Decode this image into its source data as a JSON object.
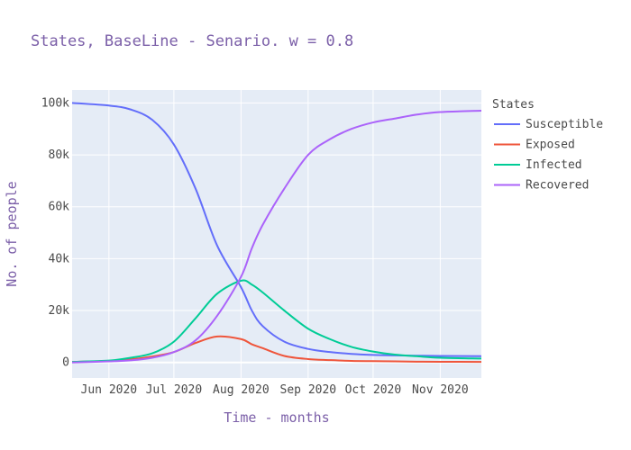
{
  "chart_data": {
    "type": "line",
    "title": "States, BaseLine - Senario. w = 0.8",
    "xlabel": "Time - months",
    "ylabel": "No. of people",
    "legend_title": "States",
    "legend_position": "right",
    "grid": true,
    "x_tick_labels": [
      "Jun 2020",
      "Jul 2020",
      "Aug 2020",
      "Sep 2020",
      "Oct 2020",
      "Nov 2020"
    ],
    "x_ticks": [
      "2020-06-01",
      "2020-07-01",
      "2020-08-01",
      "2020-09-01",
      "2020-10-01",
      "2020-11-01"
    ],
    "xlim": [
      "2020-05-15",
      "2020-11-20"
    ],
    "y_tick_labels": [
      "0",
      "20k",
      "40k",
      "60k",
      "80k",
      "100k"
    ],
    "y_ticks": [
      0,
      20000,
      40000,
      60000,
      80000,
      100000
    ],
    "ylim": [
      -6000,
      105000
    ],
    "x": [
      "2020-05-15",
      "2020-06-01",
      "2020-06-11",
      "2020-06-21",
      "2020-07-01",
      "2020-07-11",
      "2020-07-21",
      "2020-08-01",
      "2020-08-06",
      "2020-08-11",
      "2020-08-21",
      "2020-09-01",
      "2020-09-11",
      "2020-09-21",
      "2020-10-01",
      "2020-10-11",
      "2020-10-21",
      "2020-11-01",
      "2020-11-20"
    ],
    "series": [
      {
        "name": "Susceptible",
        "color": "#636efa",
        "values": [
          100000,
          99000,
          97500,
          93500,
          84000,
          67000,
          45000,
          29000,
          20000,
          14000,
          8000,
          5200,
          4000,
          3300,
          2900,
          2700,
          2600,
          2500,
          2400
        ]
      },
      {
        "name": "Exposed",
        "color": "#ef553b",
        "values": [
          200,
          600,
          1200,
          2300,
          4000,
          7500,
          10000,
          9000,
          7000,
          5500,
          2500,
          1300,
          900,
          600,
          500,
          400,
          300,
          250,
          200
        ]
      },
      {
        "name": "Infected",
        "color": "#00cc96",
        "values": [
          200,
          700,
          1800,
          3500,
          8000,
          17000,
          26500,
          31500,
          30000,
          27000,
          20000,
          13000,
          9000,
          6000,
          4200,
          3000,
          2400,
          1800,
          1500
        ]
      },
      {
        "name": "Recovered",
        "color": "#ab63fa",
        "values": [
          0,
          400,
          800,
          1800,
          4000,
          8500,
          18000,
          33000,
          44000,
          53000,
          67000,
          80000,
          86000,
          90000,
          92500,
          94000,
          95500,
          96500,
          97000
        ]
      }
    ]
  }
}
